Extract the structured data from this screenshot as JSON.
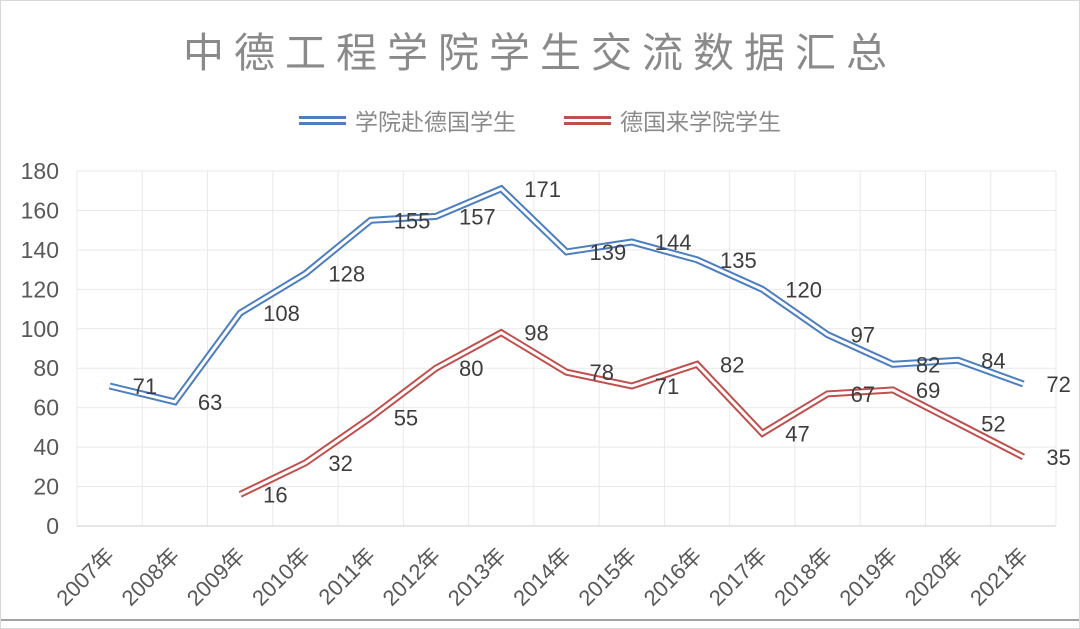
{
  "title": "中德工程学院学生交流数据汇总",
  "legend": [
    {
      "label": "学院赴德国学生",
      "color": "#4d7ec1"
    },
    {
      "label": "德国来学院学生",
      "color": "#c0504d"
    }
  ],
  "colors": {
    "series_blue": "#4d7ec1",
    "series_red": "#c0504d",
    "grid": "#e9e9e9",
    "axis_line": "#cccccc",
    "tick_label": "#595959",
    "data_label": "#3d3d3d",
    "title_gray": "#8a8a8a"
  },
  "chart_data": {
    "type": "line",
    "title": "中德工程学院学生交流数据汇总",
    "categories": [
      "2007年",
      "2008年",
      "2009年",
      "2010年",
      "2011年",
      "2012年",
      "2013年",
      "2014年",
      "2015年",
      "2016年",
      "2017年",
      "2018年",
      "2019年",
      "2020年",
      "2021年"
    ],
    "series": [
      {
        "name": "学院赴德国学生",
        "color": "#4d7ec1",
        "values": [
          71,
          63,
          108,
          128,
          155,
          157,
          171,
          139,
          144,
          135,
          120,
          97,
          82,
          84,
          72
        ]
      },
      {
        "name": "德国来学院学生",
        "color": "#c0504d",
        "values": [
          null,
          null,
          16,
          32,
          55,
          80,
          98,
          78,
          71,
          82,
          47,
          67,
          69,
          52,
          35
        ]
      }
    ],
    "xlabel": "",
    "ylabel": "",
    "ylim": [
      0,
      180
    ],
    "ytick_step": 20,
    "grid": true,
    "legend_position": "top",
    "data_labels": true,
    "line_style": "double"
  }
}
